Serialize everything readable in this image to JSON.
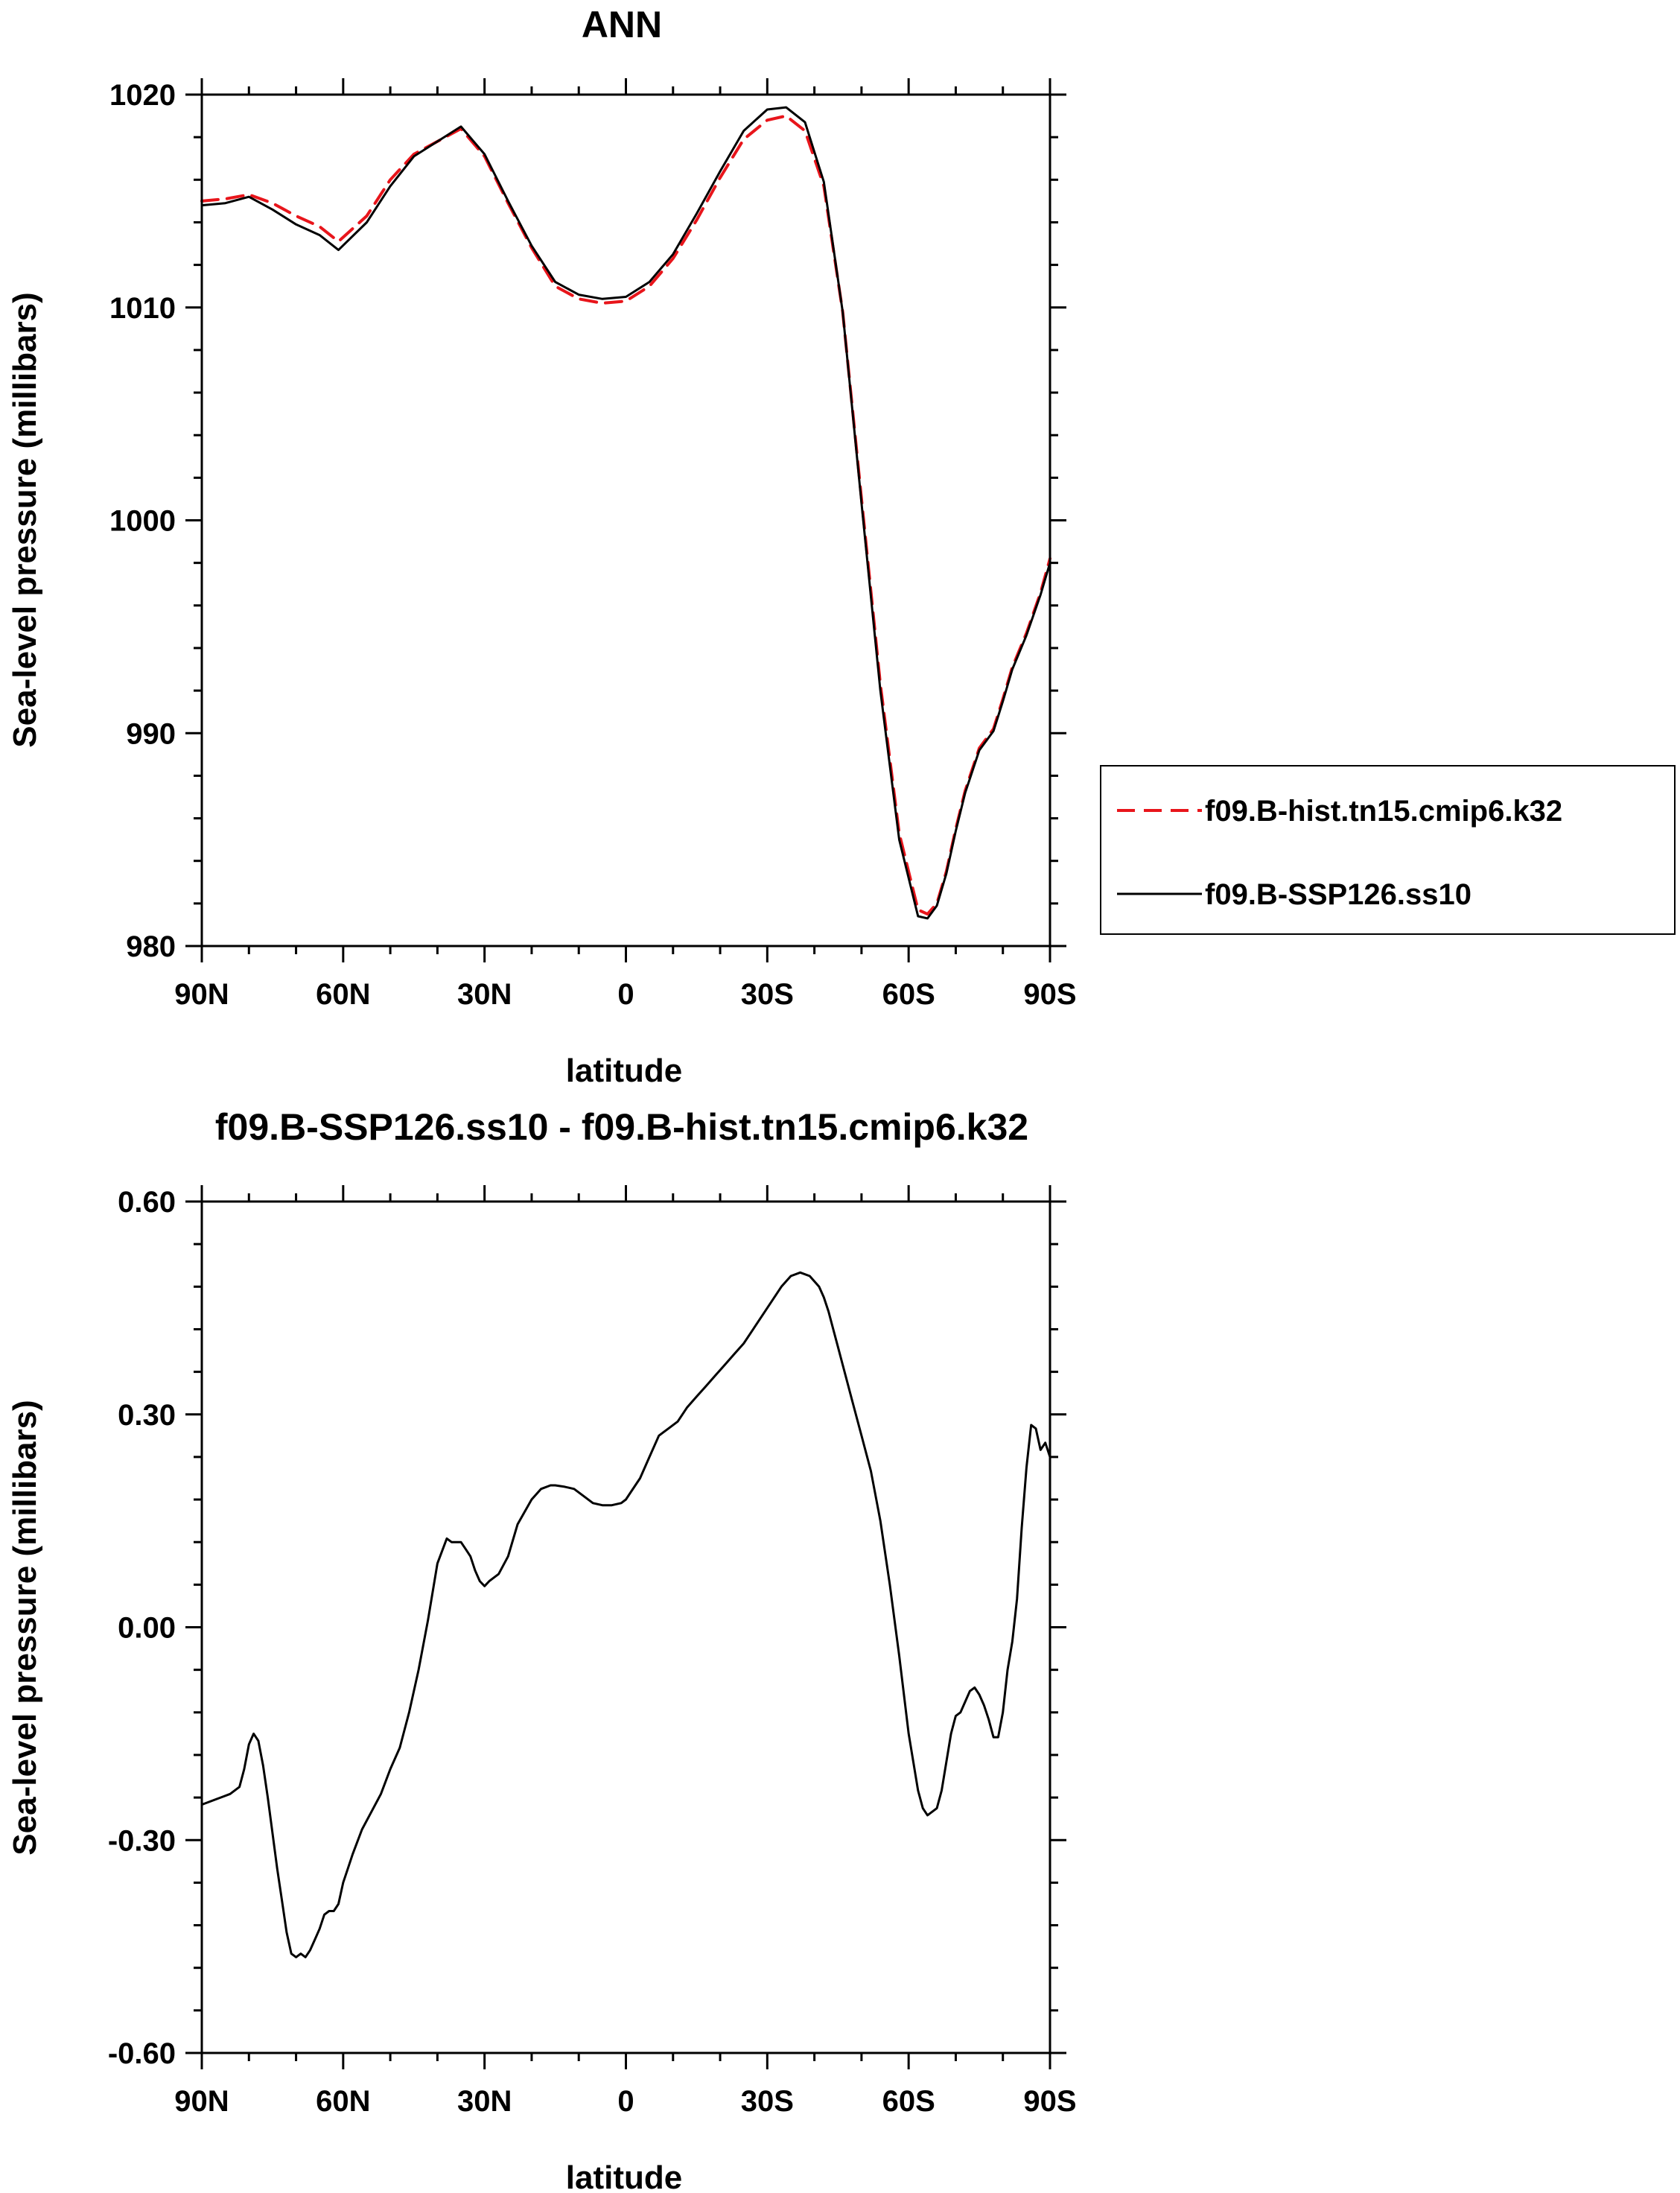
{
  "chart_data": [
    {
      "type": "line",
      "title": "ANN",
      "xlabel": "latitude",
      "ylabel": "Sea-level pressure (millibars)",
      "xlim": [
        90,
        -90
      ],
      "ylim": [
        980,
        1020
      ],
      "xticks": [
        90,
        60,
        30,
        0,
        -30,
        -60,
        -90
      ],
      "xtick_labels": [
        "90N",
        "60N",
        "30N",
        "0",
        "30S",
        "60S",
        "90S"
      ],
      "yticks": [
        980,
        990,
        1000,
        1010,
        1020
      ],
      "ytick_labels": [
        "980",
        "990",
        "1000",
        "1010",
        "1020"
      ],
      "legend_position": "right",
      "series": [
        {
          "name": "f09.B-hist.tn15.cmip6.k32",
          "color": "#e8151b",
          "dash": "dashed",
          "x": [
            90,
            85,
            80,
            75,
            70,
            65,
            61,
            55,
            50,
            45,
            40,
            35,
            30,
            25,
            20,
            15,
            10,
            5,
            0,
            -5,
            -10,
            -15,
            -20,
            -25,
            -30,
            -34,
            -38,
            -42,
            -46,
            -50,
            -54,
            -58,
            -62,
            -64,
            -66,
            -68,
            -70,
            -72,
            -75,
            -78,
            -80,
            -82,
            -85,
            -88,
            -90
          ],
          "y": [
            1015.0,
            1015.1,
            1015.3,
            1014.9,
            1014.3,
            1013.8,
            1013.1,
            1014.3,
            1016.0,
            1017.2,
            1017.8,
            1018.4,
            1017.1,
            1014.9,
            1012.8,
            1011.0,
            1010.4,
            1010.2,
            1010.3,
            1011.0,
            1012.3,
            1014.1,
            1016.1,
            1017.9,
            1018.8,
            1019.0,
            1018.3,
            1015.7,
            1009.8,
            1001.0,
            992.3,
            985.3,
            981.7,
            981.5,
            982.0,
            983.5,
            985.5,
            987.3,
            989.3,
            990.2,
            991.6,
            993.1,
            994.7,
            996.6,
            998.2
          ]
        },
        {
          "name": "f09.B-SSP126.ss10",
          "color": "#000000",
          "dash": "solid",
          "x": [
            90,
            85,
            80,
            75,
            70,
            65,
            61,
            55,
            50,
            45,
            40,
            35,
            30,
            25,
            20,
            15,
            10,
            5,
            0,
            -5,
            -10,
            -15,
            -20,
            -25,
            -30,
            -34,
            -38,
            -42,
            -46,
            -50,
            -54,
            -58,
            -62,
            -64,
            -66,
            -68,
            -70,
            -72,
            -75,
            -78,
            -80,
            -82,
            -85,
            -88,
            -90
          ],
          "y": [
            1014.8,
            1014.9,
            1015.2,
            1014.6,
            1013.9,
            1013.4,
            1012.7,
            1014.0,
            1015.7,
            1017.1,
            1017.8,
            1018.5,
            1017.2,
            1015.0,
            1012.9,
            1011.2,
            1010.6,
            1010.4,
            1010.5,
            1011.2,
            1012.5,
            1014.4,
            1016.4,
            1018.3,
            1019.3,
            1019.4,
            1018.7,
            1015.9,
            1009.8,
            1000.8,
            992.0,
            985.0,
            981.4,
            981.3,
            981.9,
            983.4,
            985.4,
            987.2,
            989.2,
            990.1,
            991.5,
            993.0,
            994.6,
            996.5,
            998.0
          ]
        }
      ]
    },
    {
      "type": "line",
      "title": "f09.B-SSP126.ss10 - f09.B-hist.tn15.cmip6.k32",
      "xlabel": "latitude",
      "ylabel": "Sea-level pressure (millibars)",
      "xlim": [
        90,
        -90
      ],
      "ylim": [
        -0.6,
        0.6
      ],
      "xticks": [
        90,
        60,
        30,
        0,
        -30,
        -60,
        -90
      ],
      "xtick_labels": [
        "90N",
        "60N",
        "30N",
        "0",
        "30S",
        "60S",
        "90S"
      ],
      "yticks": [
        -0.6,
        -0.3,
        0.0,
        0.3,
        0.6
      ],
      "ytick_labels": [
        "-0.60",
        "-0.30",
        "0.00",
        "0.30",
        "0.60"
      ],
      "series": [
        {
          "color": "#000000",
          "dash": "solid",
          "x": [
            90,
            86,
            84,
            82,
            81,
            80,
            79,
            78,
            77,
            76,
            75,
            74,
            73,
            72,
            71,
            70,
            69,
            68,
            67,
            66,
            65,
            64,
            63,
            62,
            61,
            60,
            59,
            58,
            56,
            54,
            52,
            50,
            48,
            46,
            44,
            42,
            40,
            38,
            37,
            36,
            35,
            34,
            33,
            32,
            31,
            30,
            29,
            27,
            25,
            23,
            20,
            18,
            16,
            15,
            13,
            11,
            9,
            7,
            5,
            3,
            1,
            0,
            -1,
            -3,
            -5,
            -7,
            -9,
            -11,
            -13,
            -15,
            -17,
            -19,
            -21,
            -23,
            -25,
            -27,
            -29,
            -31,
            -33,
            -35,
            -37,
            -39,
            -41,
            -42,
            -43,
            -44,
            -45,
            -46,
            -47,
            -48,
            -50,
            -52,
            -54,
            -56,
            -58,
            -60,
            -62,
            -63,
            -64,
            -65,
            -66,
            -67,
            -68,
            -69,
            -70,
            -71,
            -72,
            -73,
            -74,
            -75,
            -76,
            -77,
            -78,
            -79,
            -80,
            -81,
            -82,
            -83,
            -84,
            -85,
            -86,
            -87,
            -88,
            -89,
            -90
          ],
          "y": [
            -0.25,
            -0.24,
            -0.235,
            -0.225,
            -0.2,
            -0.165,
            -0.15,
            -0.16,
            -0.195,
            -0.24,
            -0.29,
            -0.34,
            -0.385,
            -0.43,
            -0.46,
            -0.465,
            -0.46,
            -0.465,
            -0.455,
            -0.44,
            -0.425,
            -0.405,
            -0.4,
            -0.4,
            -0.39,
            -0.36,
            -0.34,
            -0.32,
            -0.285,
            -0.26,
            -0.235,
            -0.2,
            -0.17,
            -0.12,
            -0.06,
            0.01,
            0.09,
            0.125,
            0.12,
            0.12,
            0.12,
            0.11,
            0.1,
            0.08,
            0.065,
            0.058,
            0.065,
            0.075,
            0.1,
            0.145,
            0.18,
            0.195,
            0.2,
            0.2,
            0.198,
            0.195,
            0.185,
            0.175,
            0.172,
            0.172,
            0.175,
            0.18,
            0.19,
            0.21,
            0.24,
            0.27,
            0.28,
            0.29,
            0.31,
            0.325,
            0.34,
            0.355,
            0.37,
            0.385,
            0.4,
            0.42,
            0.44,
            0.46,
            0.48,
            0.495,
            0.5,
            0.495,
            0.48,
            0.465,
            0.445,
            0.42,
            0.395,
            0.37,
            0.345,
            0.32,
            0.27,
            0.22,
            0.15,
            0.06,
            -0.04,
            -0.15,
            -0.23,
            -0.255,
            -0.265,
            -0.26,
            -0.255,
            -0.23,
            -0.19,
            -0.15,
            -0.125,
            -0.12,
            -0.105,
            -0.09,
            -0.085,
            -0.095,
            -0.11,
            -0.13,
            -0.155,
            -0.155,
            -0.12,
            -0.06,
            -0.02,
            0.04,
            0.14,
            0.225,
            0.285,
            0.28,
            0.25,
            0.26,
            0.24
          ]
        }
      ]
    }
  ]
}
